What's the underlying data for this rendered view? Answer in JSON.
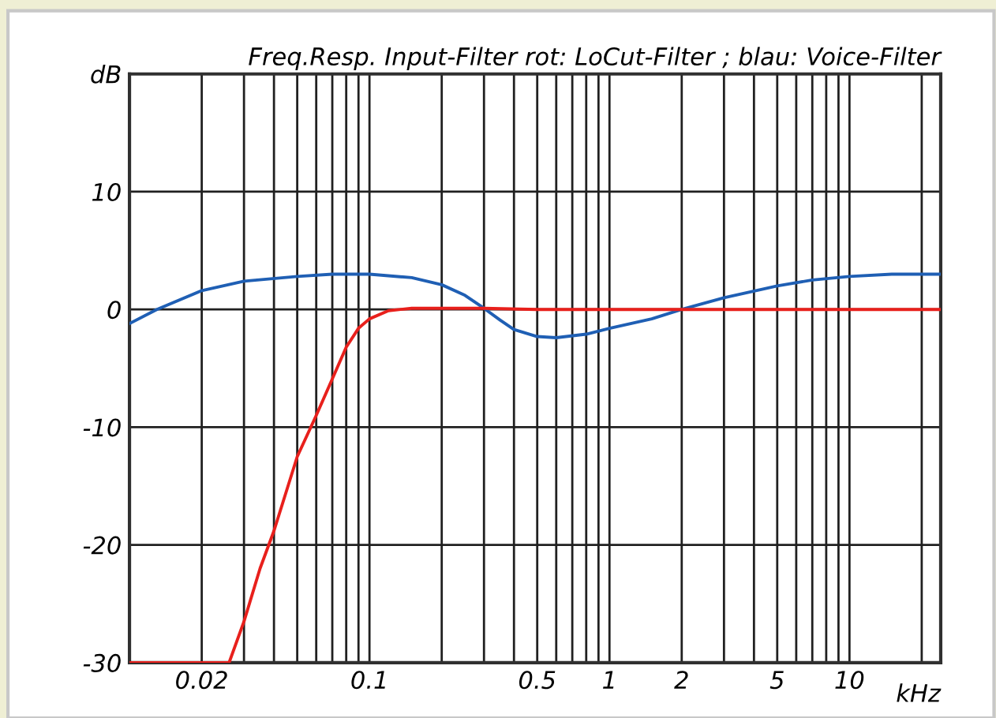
{
  "chart_data": {
    "type": "line",
    "title": "Freq.Resp. Input-Filter rot: LoCut-Filter ; blau: Voice-Filter",
    "xlabel": "kHz",
    "log": "x",
    "grid": true,
    "marker": "none",
    "line_style": "solid",
    "xlim": [
      0.01,
      24
    ],
    "ylim": [
      -30,
      20
    ],
    "xticks": [
      0.02,
      {
        "value": 0.03,
        "label": null
      },
      {
        "value": 0.04,
        "label": null
      },
      {
        "value": 0.05,
        "label": null
      },
      {
        "value": 0.06,
        "label": null
      },
      {
        "value": 0.07,
        "label": null
      },
      {
        "value": 0.08,
        "label": null
      },
      {
        "value": 0.09,
        "label": null
      },
      0.1,
      {
        "value": 0.2,
        "label": null
      },
      {
        "value": 0.3,
        "label": null
      },
      {
        "value": 0.4,
        "label": null
      },
      0.5,
      {
        "value": 0.6,
        "label": null
      },
      {
        "value": 0.7,
        "label": null
      },
      {
        "value": 0.8,
        "label": null
      },
      {
        "value": 0.9,
        "label": null
      },
      1,
      2,
      {
        "value": 3,
        "label": null
      },
      {
        "value": 4,
        "label": null
      },
      5,
      {
        "value": 6,
        "label": null
      },
      {
        "value": 7,
        "label": null
      },
      {
        "value": 8,
        "label": null
      },
      {
        "value": 9,
        "label": null
      },
      10,
      {
        "value": 20,
        "label": null
      }
    ],
    "yticks": [
      -30,
      -20,
      -10,
      0,
      10,
      {
        "value": 20,
        "label": "dB"
      }
    ],
    "series": [
      {
        "color": "#1f5fb4",
        "x": [
          0.01,
          0.013,
          0.02,
          0.03,
          0.05,
          0.07,
          0.1,
          0.15,
          0.2,
          0.25,
          0.3,
          0.35,
          0.4,
          0.5,
          0.6,
          0.8,
          1,
          1.5,
          2,
          3,
          5,
          7,
          10,
          15,
          24
        ],
        "values": [
          -1.2,
          0,
          1.6,
          2.4,
          2.8,
          3.0,
          3.0,
          2.7,
          2.1,
          1.2,
          0.1,
          -0.9,
          -1.7,
          -2.3,
          -2.4,
          -2.1,
          -1.6,
          -0.8,
          0,
          1.0,
          2.0,
          2.5,
          2.8,
          3.0,
          3.0
        ]
      },
      {
        "color": "#e8201c",
        "x": [
          0.01,
          0.026,
          0.03,
          0.035,
          0.04,
          0.05,
          0.06,
          0.07,
          0.08,
          0.09,
          0.1,
          0.12,
          0.15,
          0.3,
          0.5,
          24
        ],
        "values": [
          -30,
          -30,
          -26.5,
          -22,
          -18.8,
          -12.5,
          -9,
          -5.9,
          -3.2,
          -1.6,
          -0.8,
          -0.1,
          0.1,
          0.1,
          0,
          0
        ]
      }
    ]
  }
}
